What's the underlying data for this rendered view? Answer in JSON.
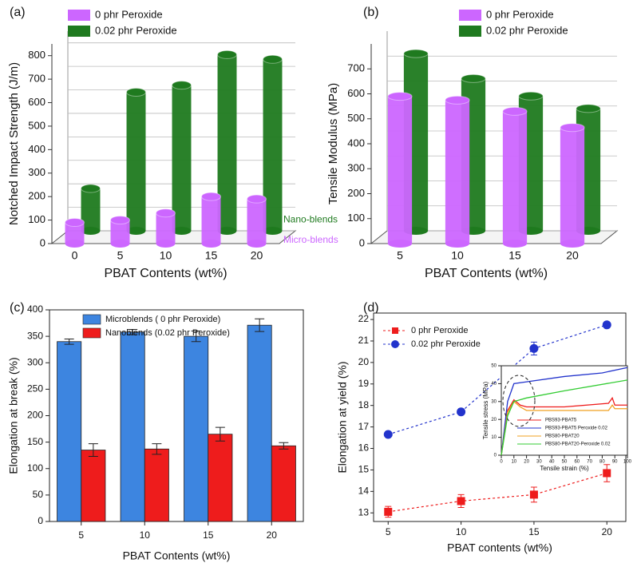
{
  "chart_data": [
    {
      "type": "bar3d",
      "panel_label": "(a)",
      "x_label": "PBAT Contents (wt%)",
      "y_label": "Notched Impact Strength (J/m)",
      "categories": [
        "0",
        "5",
        "10",
        "15",
        "20"
      ],
      "series": [
        {
          "name": "0 phr Peroxide",
          "color": "#cc66ff",
          "row_label": "Micro-blends",
          "values": [
            90,
            100,
            130,
            200,
            190
          ]
        },
        {
          "name": "0.02 phr Peroxide",
          "color": "#1f7a1f",
          "row_label": "Nano-blends",
          "values": [
            180,
            590,
            620,
            750,
            730
          ]
        }
      ],
      "ylim": [
        0,
        850
      ],
      "yticks": [
        0,
        100,
        200,
        300,
        400,
        500,
        600,
        700,
        800
      ],
      "grid": true,
      "legend": "top-left"
    },
    {
      "type": "bar3d",
      "panel_label": "(b)",
      "x_label": "PBAT Contents (wt%)",
      "y_label": "Tensile Modulus (MPa)",
      "categories": [
        "5",
        "10",
        "15",
        "20"
      ],
      "series": [
        {
          "name": "0 phr Peroxide",
          "color": "#cc66ff",
          "values": [
            590,
            575,
            530,
            465
          ]
        },
        {
          "name": "0.02 phr Peroxide",
          "color": "#1f7a1f",
          "values": [
            710,
            610,
            540,
            490
          ]
        }
      ],
      "ylim": [
        0,
        800
      ],
      "yticks": [
        0,
        100,
        200,
        300,
        400,
        500,
        600,
        700
      ],
      "grid": true,
      "legend": "top-right"
    },
    {
      "type": "bar",
      "panel_label": "(c)",
      "x_label": "PBAT Contents (wt%)",
      "y_label": "Elongation at break (%)",
      "categories": [
        "5",
        "10",
        "15",
        "20"
      ],
      "series": [
        {
          "name": "Microblends ( 0 phr Peroxide)",
          "color": "#3d85e0",
          "values": [
            340,
            358,
            350,
            371
          ],
          "errors": [
            5,
            5,
            10,
            12
          ]
        },
        {
          "name": "Nanoblends (0.02 phr Peroxide)",
          "color": "#ee1c1c",
          "values": [
            135,
            137,
            165,
            143
          ],
          "errors": [
            12,
            10,
            13,
            6
          ]
        }
      ],
      "ylim": [
        0,
        400
      ],
      "yticks": [
        0,
        50,
        100,
        150,
        200,
        250,
        300,
        350,
        400
      ],
      "legend": "top-left"
    },
    {
      "type": "line",
      "panel_label": "(d)",
      "x_label": "PBAT contents (wt%)",
      "y_label": "Elongation at yield (%)",
      "x": [
        5,
        10,
        15,
        20
      ],
      "xlim": [
        4,
        21.3
      ],
      "xticks": [
        5,
        10,
        15,
        20
      ],
      "ylim": [
        12.6,
        22.3
      ],
      "yticks": [
        13,
        14,
        15,
        16,
        17,
        18,
        19,
        20,
        21,
        22
      ],
      "series": [
        {
          "name": "0 phr Peroxide",
          "color": "#ee1c1c",
          "marker": "square",
          "values": [
            13.05,
            13.55,
            13.85,
            14.85
          ],
          "errors": [
            0.25,
            0.3,
            0.35,
            0.4
          ]
        },
        {
          "name": "0.02 phr Peroxide",
          "color": "#2233cc",
          "marker": "circle",
          "values": [
            16.65,
            17.7,
            20.65,
            21.75
          ],
          "errors": [
            0.05,
            0.05,
            0.3,
            0.1
          ]
        }
      ],
      "legend": "top-left",
      "inset": {
        "type": "line",
        "x_label": "Tensile strain (%)",
        "y_label": "Tensile stress (MPa)",
        "xlim": [
          0,
          100
        ],
        "xticks": [
          0,
          10,
          20,
          30,
          40,
          50,
          60,
          70,
          80,
          90,
          100
        ],
        "ylim": [
          0,
          50
        ],
        "yticks": [
          0,
          10,
          20,
          30,
          40,
          50
        ],
        "series": [
          {
            "name": "PBS93-PBAT5",
            "color": "#ee1c1c",
            "x": [
              0,
              5,
              10,
              15,
              20,
              50,
              85,
              88,
              90,
              100
            ],
            "values": [
              0,
              25,
              31,
              28,
              27,
              27,
              29,
              32,
              28,
              28
            ]
          },
          {
            "name": "PBS93-PBAT5 Peroxide 0.02",
            "color": "#2233cc",
            "x": [
              0,
              5,
              10,
              20,
              50,
              80,
              100
            ],
            "values": [
              0,
              30,
              40,
              41,
              44,
              46,
              49
            ]
          },
          {
            "name": "PBS80-PBAT20",
            "color": "#f0a020",
            "x": [
              0,
              5,
              10,
              15,
              20,
              85,
              88,
              90,
              100
            ],
            "values": [
              0,
              24,
              30,
              27,
              25,
              25,
              28,
              26,
              26
            ]
          },
          {
            "name": "PBS80-PBAT20-Peroxide 0.02",
            "color": "#33cc33",
            "x": [
              0,
              5,
              10,
              20,
              50,
              100
            ],
            "values": [
              0,
              22,
              30,
              32,
              36,
              42
            ]
          }
        ]
      }
    }
  ]
}
